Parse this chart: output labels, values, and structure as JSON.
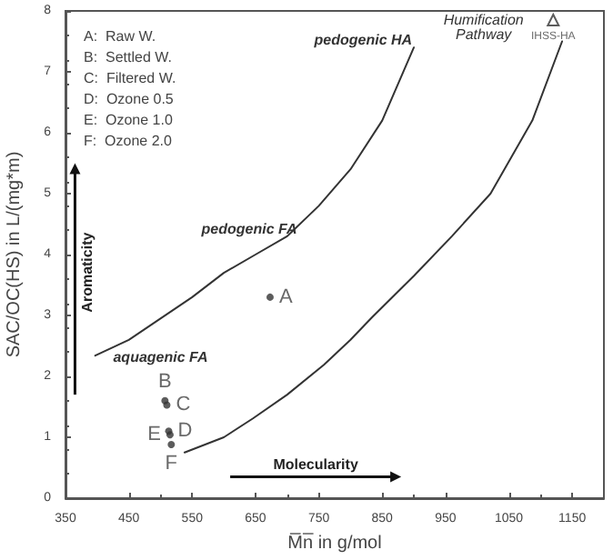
{
  "chart_data": {
    "type": "scatter",
    "xlabel": "M̅n̅ in g/mol",
    "ylabel": "SAC/OC(HS) in L/(mg*m)",
    "xlim": [
      350,
      1200
    ],
    "xticks": [
      350,
      450,
      550,
      650,
      750,
      850,
      950,
      1050,
      1150
    ],
    "ylim": [
      0,
      8
    ],
    "yticks": [
      0,
      1,
      2,
      3,
      4,
      5,
      6,
      7,
      8
    ],
    "grid": false,
    "marker": "circle",
    "series": [
      {
        "color": "#333333",
        "x": [
          673,
          507,
          510,
          513,
          515,
          517
        ],
        "values": [
          3.3,
          1.6,
          1.53,
          1.1,
          1.04,
          0.88
        ],
        "value_labels": [
          "A",
          "B",
          "C",
          "D",
          "E",
          "F"
        ]
      },
      {
        "type": "scatter",
        "marker": "triangle",
        "color": "#333333",
        "x": [
          1120
        ],
        "values": [
          7.85
        ],
        "value_labels": [
          "IHSS-HA"
        ]
      },
      {
        "type": "line",
        "marker": "none",
        "line_style": "solid",
        "color": "#333333",
        "x": [
          397,
          450,
          500,
          550,
          600,
          650,
          700,
          750,
          800,
          850,
          900
        ],
        "values": [
          2.34,
          2.6,
          2.95,
          3.3,
          3.7,
          4.0,
          4.3,
          4.8,
          5.4,
          6.2,
          7.4
        ]
      },
      {
        "type": "line",
        "marker": "none",
        "line_style": "solid",
        "color": "#333333",
        "x": [
          538,
          600,
          646,
          700,
          758,
          800,
          834,
          900,
          960,
          1021,
          1087,
          1134
        ],
        "values": [
          0.75,
          1.0,
          1.31,
          1.7,
          2.19,
          2.6,
          2.97,
          3.65,
          4.3,
          5.0,
          6.2,
          7.5
        ]
      }
    ],
    "annotations": [
      "pedogenic HA",
      "Humification\nPathway",
      "pedogenic FA",
      "aquagenic FA",
      "A:  Raw W.",
      "B:  Settled W.",
      "C:  Filtered W.",
      "D:  Ozone 0.5",
      "E:  Ozone 1.0",
      "F:  Ozone 2.0",
      "Aromaticity",
      "Molecularity"
    ]
  }
}
